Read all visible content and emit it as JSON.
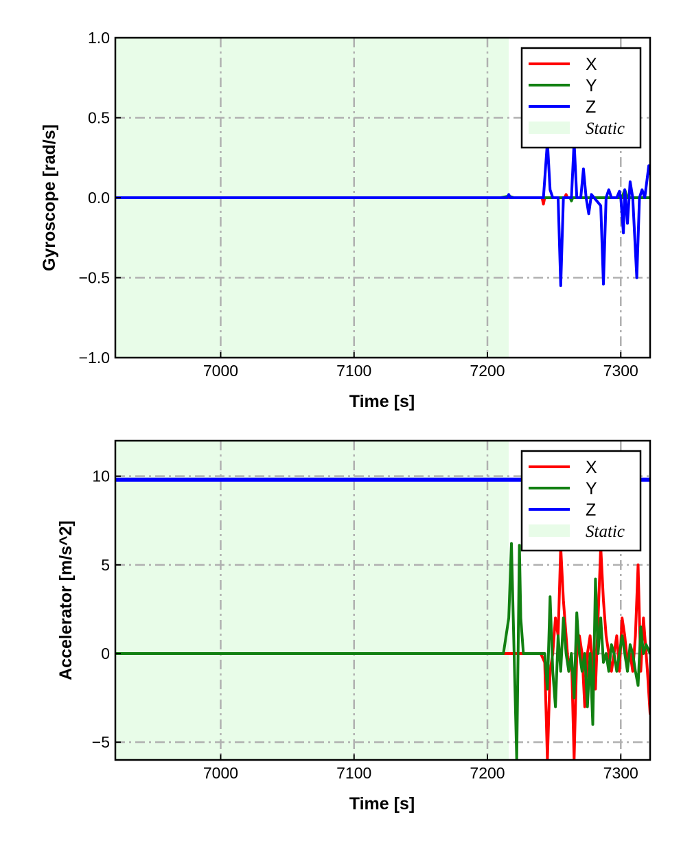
{
  "chart_data": [
    {
      "type": "line",
      "xlabel": "Time [s]",
      "ylabel": "Gyroscope [rad/s]",
      "xlim": [
        6921,
        7322
      ],
      "ylim": [
        -1.0,
        1.0
      ],
      "xticks": [
        7000,
        7100,
        7200,
        7300
      ],
      "xtick_labels": [
        "7000",
        "7100",
        "7200",
        "7300"
      ],
      "yticks": [
        -1.0,
        -0.5,
        0.0,
        0.5,
        1.0
      ],
      "ytick_labels": [
        "−1.0",
        "−0.5",
        "0.0",
        "0.5",
        "1.0"
      ],
      "grid": true,
      "legend_position": "top-right",
      "static_region": {
        "label": "Static",
        "x": [
          6921,
          7216
        ],
        "color": "#e8fce8"
      },
      "series": [
        {
          "name": "X",
          "color": "#ff0000",
          "points": [
            [
              6921,
              0
            ],
            [
              7200,
              0
            ],
            [
              7216,
              0
            ],
            [
              7241,
              0
            ],
            [
              7242,
              -0.04
            ],
            [
              7243,
              0
            ],
            [
              7258,
              0
            ],
            [
              7259,
              0.02
            ],
            [
              7260,
              0
            ],
            [
              7300,
              0
            ],
            [
              7322,
              0
            ]
          ]
        },
        {
          "name": "Y",
          "color": "#118011",
          "points": [
            [
              6921,
              0
            ],
            [
              7210,
              0
            ],
            [
              7216,
              0.01
            ],
            [
              7220,
              0
            ],
            [
              7262,
              0
            ],
            [
              7263,
              -0.02
            ],
            [
              7264,
              0
            ],
            [
              7301,
              0
            ],
            [
              7303,
              0.05
            ],
            [
              7305,
              0
            ],
            [
              7322,
              0
            ]
          ]
        },
        {
          "name": "Z",
          "color": "#0000ff",
          "points": [
            [
              6921,
              0
            ],
            [
              7215,
              0
            ],
            [
              7216,
              0.02
            ],
            [
              7217,
              0
            ],
            [
              7242,
              0
            ],
            [
              7245,
              0.35
            ],
            [
              7247,
              0.05
            ],
            [
              7249,
              0
            ],
            [
              7253,
              0
            ],
            [
              7255,
              -0.55
            ],
            [
              7257,
              0
            ],
            [
              7263,
              0
            ],
            [
              7265,
              0.35
            ],
            [
              7267,
              0
            ],
            [
              7270,
              0
            ],
            [
              7272,
              0.18
            ],
            [
              7274,
              0
            ],
            [
              7276,
              -0.1
            ],
            [
              7278,
              0.02
            ],
            [
              7280,
              0
            ],
            [
              7285,
              -0.05
            ],
            [
              7287,
              -0.54
            ],
            [
              7289,
              0
            ],
            [
              7291,
              0.05
            ],
            [
              7293,
              0
            ],
            [
              7297,
              0
            ],
            [
              7299,
              0.04
            ],
            [
              7300,
              0
            ],
            [
              7302,
              -0.22
            ],
            [
              7303,
              0.05
            ],
            [
              7305,
              -0.16
            ],
            [
              7307,
              0.1
            ],
            [
              7309,
              0
            ],
            [
              7312,
              -0.5
            ],
            [
              7314,
              0
            ],
            [
              7316,
              0.05
            ],
            [
              7318,
              0
            ],
            [
              7321,
              0.2
            ],
            [
              7322,
              0.15
            ]
          ]
        }
      ]
    },
    {
      "type": "line",
      "xlabel": "Time [s]",
      "ylabel": "Accelerator [m/s^2]",
      "xlim": [
        6921,
        7322
      ],
      "ylim": [
        -6,
        12
      ],
      "xticks": [
        7000,
        7100,
        7200,
        7300
      ],
      "xtick_labels": [
        "7000",
        "7100",
        "7200",
        "7300"
      ],
      "yticks": [
        -5,
        0,
        5,
        10
      ],
      "ytick_labels": [
        "−5",
        "0",
        "5",
        "10"
      ],
      "grid": true,
      "legend_position": "top-right",
      "static_region": {
        "label": "Static",
        "x": [
          6921,
          7216
        ],
        "color": "#e8fce8"
      },
      "series": [
        {
          "name": "X",
          "color": "#ff0000",
          "points": [
            [
              6921,
              0
            ],
            [
              7215,
              0
            ],
            [
              7240,
              0
            ],
            [
              7243,
              -0.5
            ],
            [
              7245,
              -6
            ],
            [
              7247,
              -1
            ],
            [
              7249,
              0
            ],
            [
              7251,
              2
            ],
            [
              7253,
              1
            ],
            [
              7255,
              6
            ],
            [
              7257,
              3
            ],
            [
              7259,
              1
            ],
            [
              7261,
              -1
            ],
            [
              7263,
              0
            ],
            [
              7265,
              -6
            ],
            [
              7267,
              0
            ],
            [
              7269,
              1
            ],
            [
              7271,
              0
            ],
            [
              7273,
              -3
            ],
            [
              7275,
              0
            ],
            [
              7277,
              1
            ],
            [
              7279,
              -1
            ],
            [
              7281,
              -2
            ],
            [
              7283,
              2
            ],
            [
              7285,
              6
            ],
            [
              7287,
              3
            ],
            [
              7289,
              1
            ],
            [
              7291,
              0
            ],
            [
              7293,
              -1
            ],
            [
              7295,
              0
            ],
            [
              7297,
              1
            ],
            [
              7299,
              -1
            ],
            [
              7301,
              2
            ],
            [
              7303,
              1
            ],
            [
              7305,
              -0.5
            ],
            [
              7307,
              0
            ],
            [
              7309,
              -1
            ],
            [
              7311,
              1
            ],
            [
              7313,
              5
            ],
            [
              7315,
              -1
            ],
            [
              7317,
              2
            ],
            [
              7319,
              0
            ],
            [
              7320,
              -1
            ],
            [
              7322,
              -3.4
            ]
          ]
        },
        {
          "name": "Y",
          "color": "#118011",
          "points": [
            [
              6921,
              0
            ],
            [
              7212,
              0
            ],
            [
              7216,
              2
            ],
            [
              7218,
              6.2
            ],
            [
              7220,
              0
            ],
            [
              7222,
              -6
            ],
            [
              7223,
              0
            ],
            [
              7224,
              6.1
            ],
            [
              7225,
              2
            ],
            [
              7227,
              0
            ],
            [
              7243,
              0
            ],
            [
              7245,
              -2
            ],
            [
              7247,
              3.2
            ],
            [
              7249,
              -1
            ],
            [
              7251,
              -3
            ],
            [
              7253,
              1
            ],
            [
              7255,
              -1
            ],
            [
              7257,
              2
            ],
            [
              7259,
              0
            ],
            [
              7261,
              -1
            ],
            [
              7263,
              0
            ],
            [
              7265,
              -2.5
            ],
            [
              7267,
              2.3
            ],
            [
              7269,
              0
            ],
            [
              7271,
              -1
            ],
            [
              7273,
              0
            ],
            [
              7275,
              -3
            ],
            [
              7277,
              0
            ],
            [
              7279,
              -4
            ],
            [
              7281,
              4.2
            ],
            [
              7283,
              0
            ],
            [
              7285,
              2
            ],
            [
              7287,
              -0.5
            ],
            [
              7289,
              0
            ],
            [
              7291,
              -1
            ],
            [
              7293,
              0.5
            ],
            [
              7295,
              0
            ],
            [
              7297,
              -1
            ],
            [
              7299,
              0
            ],
            [
              7301,
              1
            ],
            [
              7303,
              0
            ],
            [
              7305,
              -1
            ],
            [
              7307,
              0.5
            ],
            [
              7309,
              0
            ],
            [
              7311,
              -1
            ],
            [
              7313,
              -1.8
            ],
            [
              7315,
              1.5
            ],
            [
              7317,
              0
            ],
            [
              7319,
              0.5
            ],
            [
              7322,
              0
            ]
          ]
        },
        {
          "name": "Z",
          "color": "#0000ff",
          "points": [
            [
              6921,
              9.8
            ],
            [
              7322,
              9.8
            ]
          ]
        }
      ]
    }
  ]
}
